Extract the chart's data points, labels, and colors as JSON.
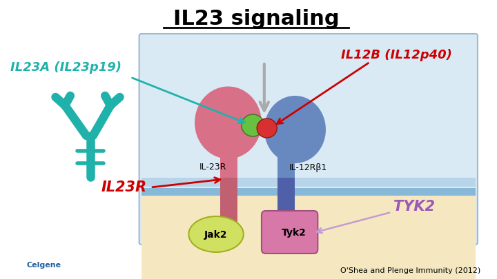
{
  "title": "IL23 signaling",
  "title_fontsize": 22,
  "title_fontweight": "bold",
  "bg_color": "#ffffff",
  "diagram_bg": "#daeaf5",
  "intracell_bg": "#f5e8c0",
  "labels": {
    "IL23A": "IL23A (IL23p19)",
    "IL12B": "IL12B (IL12p40)",
    "IL23R": "IL23R",
    "TYK2": "TYK2",
    "IL23R_receptor": "IL-23R",
    "IL12Rb1": "IL-12Rβ1",
    "Jak2": "Jak2",
    "Tyk2": "Tyk2",
    "citation": "O'Shea and Plenge Immunity (2012)",
    "celgene": "Celgene"
  },
  "colors": {
    "IL23A_text": "#20b2aa",
    "IL12B_text": "#cc0000",
    "IL23R_text": "#cc0000",
    "TYK2_text": "#9b59b6",
    "arrow_teal": "#20b2aa",
    "arrow_red": "#cc0000",
    "arrow_purple": "#c39bd3",
    "pink_receptor": "#d87088",
    "blue_receptor": "#6888c0",
    "green_ball": "#68c040",
    "red_ball": "#d83030",
    "jak2_fill": "#d0e060",
    "tyk2_fill": "#d878a8",
    "cell_border": "#a0b8d0",
    "mem_stripe1": "#b8d4e8",
    "mem_stripe2": "#88b8d8",
    "gray_arrow": "#aaaaaa",
    "ab_color": "#20b2aa",
    "celgene_color": "#2060a0"
  }
}
